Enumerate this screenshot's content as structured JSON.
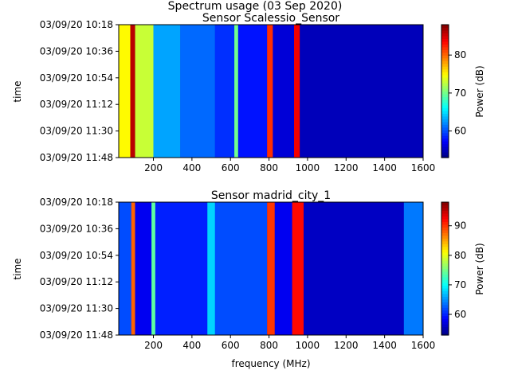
{
  "figure": {
    "suptitle": "Spectrum usage (03 Sep 2020)"
  },
  "colormap": [
    "#00007f",
    "#0000ff",
    "#007fff",
    "#00ffff",
    "#7fff7f",
    "#ffff00",
    "#ff7f00",
    "#ff0000",
    "#7f0000"
  ],
  "chart_data": [
    {
      "type": "heatmap",
      "title": "Sensor Scalessio_Sensor",
      "xlabel": "",
      "ylabel": "time",
      "xlim": [
        20,
        1600
      ],
      "xticks": [
        200,
        400,
        600,
        800,
        1000,
        1200,
        1400,
        1600
      ],
      "yticks": [
        "03/09/20 10:18",
        "03/09/20 10:36",
        "03/09/20 10:54",
        "03/09/20 11:12",
        "03/09/20 11:30",
        "03/09/20 11:48"
      ],
      "colorbar": {
        "label": "Power (dB)",
        "range": [
          53,
          88
        ],
        "ticks": [
          60,
          70,
          80
        ]
      },
      "background_db": 55,
      "bands": [
        {
          "from": 20,
          "to": 80,
          "db": 75
        },
        {
          "from": 80,
          "to": 105,
          "db": 86
        },
        {
          "from": 105,
          "to": 200,
          "db": 73
        },
        {
          "from": 200,
          "to": 340,
          "db": 63
        },
        {
          "from": 340,
          "to": 520,
          "db": 61
        },
        {
          "from": 520,
          "to": 620,
          "db": 59
        },
        {
          "from": 620,
          "to": 640,
          "db": 70
        },
        {
          "from": 640,
          "to": 790,
          "db": 58
        },
        {
          "from": 790,
          "to": 820,
          "db": 82
        },
        {
          "from": 820,
          "to": 930,
          "db": 56
        },
        {
          "from": 930,
          "to": 960,
          "db": 84
        },
        {
          "from": 960,
          "to": 1600,
          "db": 55
        }
      ]
    },
    {
      "type": "heatmap",
      "title": "Sensor madrid_city_1",
      "xlabel": "frequency (MHz)",
      "ylabel": "time",
      "xlim": [
        20,
        1600
      ],
      "xticks": [
        200,
        400,
        600,
        800,
        1000,
        1200,
        1400,
        1600
      ],
      "yticks": [
        "03/09/20 10:18",
        "03/09/20 10:36",
        "03/09/20 10:54",
        "03/09/20 11:12",
        "03/09/20 11:30",
        "03/09/20 11:48"
      ],
      "colorbar": {
        "label": "Power (dB)",
        "range": [
          53,
          98
        ],
        "ticks": [
          60,
          70,
          80,
          90
        ]
      },
      "background_db": 56,
      "bands": [
        {
          "from": 20,
          "to": 85,
          "db": 62
        },
        {
          "from": 85,
          "to": 105,
          "db": 88
        },
        {
          "from": 105,
          "to": 190,
          "db": 58
        },
        {
          "from": 190,
          "to": 210,
          "db": 74
        },
        {
          "from": 210,
          "to": 480,
          "db": 60
        },
        {
          "from": 480,
          "to": 520,
          "db": 68
        },
        {
          "from": 520,
          "to": 790,
          "db": 62
        },
        {
          "from": 790,
          "to": 830,
          "db": 90
        },
        {
          "from": 830,
          "to": 920,
          "db": 58
        },
        {
          "from": 920,
          "to": 980,
          "db": 92
        },
        {
          "from": 980,
          "to": 1500,
          "db": 56
        },
        {
          "from": 1500,
          "to": 1600,
          "db": 64
        }
      ]
    }
  ]
}
